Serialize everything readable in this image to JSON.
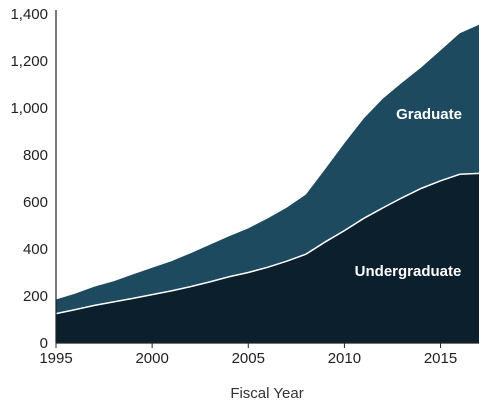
{
  "chart_data": {
    "type": "area",
    "stacked": true,
    "xlabel": "Fiscal Year",
    "ylabel": "",
    "title": "",
    "xlim": [
      1995,
      2017
    ],
    "ylim": [
      0,
      1400
    ],
    "x_ticks": [
      1995,
      2000,
      2005,
      2010,
      2015
    ],
    "y_ticks": [
      0,
      200,
      400,
      600,
      800,
      1000,
      1200,
      1400
    ],
    "y_tick_labels": [
      "0",
      "200",
      "400",
      "600",
      "800",
      "1,000",
      "1,200",
      "1,400"
    ],
    "x": [
      1995,
      1996,
      1997,
      1998,
      1999,
      2000,
      2001,
      2002,
      2003,
      2004,
      2005,
      2006,
      2007,
      2008,
      2009,
      2010,
      2011,
      2012,
      2013,
      2014,
      2015,
      2016,
      2017
    ],
    "series": [
      {
        "name": "Undergraduate",
        "color": "#0c1f2c",
        "values": [
          125,
          142,
          160,
          175,
          190,
          206,
          222,
          240,
          260,
          282,
          300,
          322,
          348,
          378,
          430,
          478,
          530,
          575,
          618,
          658,
          690,
          718,
          722
        ]
      },
      {
        "name": "Graduate",
        "color": "#1d4a5f",
        "values": [
          60,
          68,
          80,
          88,
          102,
          114,
          126,
          142,
          158,
          172,
          188,
          208,
          228,
          254,
          310,
          372,
          425,
          465,
          490,
          515,
          555,
          600,
          632
        ]
      }
    ],
    "grid": false,
    "legend": "inline"
  }
}
